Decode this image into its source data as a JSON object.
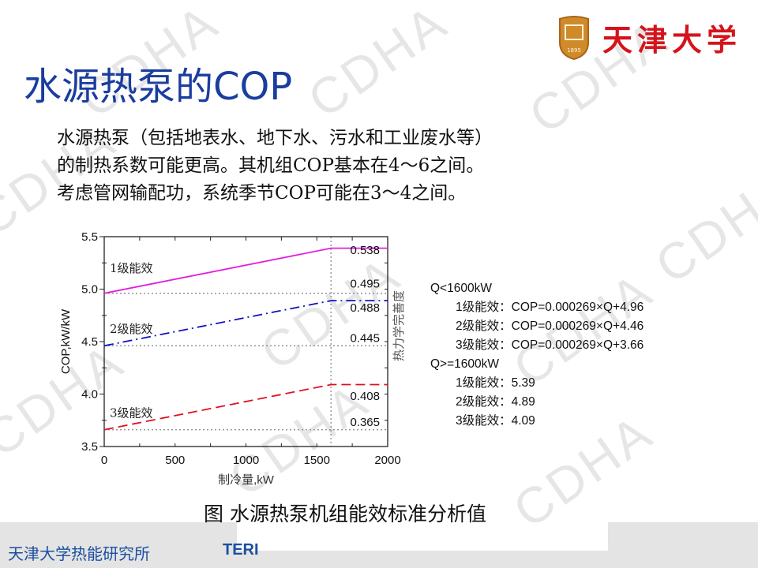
{
  "header": {
    "title": "水源热泵的COP",
    "logo_text": "天津大学",
    "logo_year": "1895"
  },
  "body_lines": [
    "水源热泵（包括地表水、地下水、污水和工业废水等）",
    "的制热系数可能更高。其机组COP基本在4～6之间。",
    "考虑管网输配功，系统季节COP可能在3～4之间。"
  ],
  "watermark": "CDHA",
  "chart_data": {
    "type": "line",
    "xlabel": "制冷量,kW",
    "ylabel": "COP,kW/kW",
    "y2label": "热力学完善度",
    "xlim": [
      0,
      2000
    ],
    "ylim": [
      3.5,
      5.5
    ],
    "xticks": [
      "0",
      "500",
      "1000",
      "1500",
      "2000"
    ],
    "yticks": [
      "3.5",
      "4.0",
      "4.5",
      "5.0",
      "5.5"
    ],
    "grid": false,
    "reference_lines": {
      "x": [
        1600
      ],
      "y": [
        4.96,
        4.46,
        3.66
      ]
    },
    "series": [
      {
        "name": "1级能效",
        "color": "#e020e0",
        "style": "solid",
        "x": [
          0,
          1600,
          2000
        ],
        "y": [
          4.96,
          5.39,
          5.39
        ]
      },
      {
        "name": "2级能效",
        "color": "#1010c0",
        "style": "dashdot",
        "x": [
          0,
          1600,
          2000
        ],
        "y": [
          4.46,
          4.89,
          4.89
        ]
      },
      {
        "name": "3级能效",
        "color": "#e01020",
        "style": "dashed",
        "x": [
          0,
          1600,
          2000
        ],
        "y": [
          3.66,
          4.09,
          4.09
        ]
      }
    ],
    "right_labels": [
      {
        "text": "0.538",
        "y": 5.38
      },
      {
        "text": "0.495",
        "y": 5.06
      },
      {
        "text": "0.488",
        "y": 4.83
      },
      {
        "text": "0.445",
        "y": 4.54
      },
      {
        "text": "0.408",
        "y": 3.99
      },
      {
        "text": "0.365",
        "y": 3.74
      }
    ]
  },
  "formulas": {
    "group1": "Q<1600kW",
    "g1_lines": [
      "1级能效：COP=0.000269×Q+4.96",
      "2级能效：COP=0.000269×Q+4.46",
      "3级能效：COP=0.000269×Q+3.66"
    ],
    "group2": "Q>=1600kW",
    "g2_lines": [
      "1级能效：5.39",
      "2级能效：4.89",
      "3级能效：4.09"
    ]
  },
  "caption": "图  水源热泵机组能效标准分析值",
  "footer": {
    "institute": "天津大学热能研究所",
    "abbr": "TERI"
  }
}
